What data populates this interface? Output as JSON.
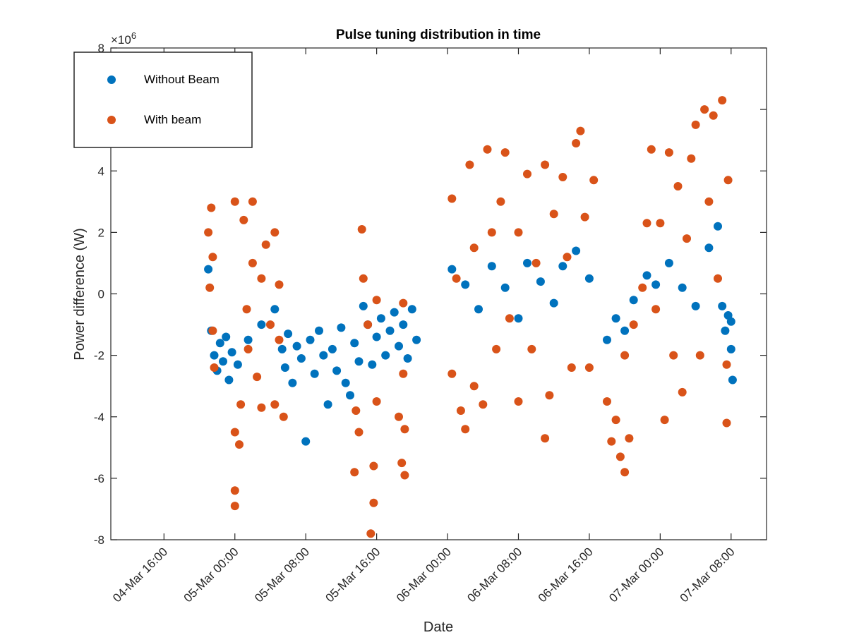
{
  "chart_data": {
    "type": "scatter",
    "title": "Pulse tuning distribution in time",
    "xlabel": "Date",
    "ylabel": "Power difference (W)",
    "y_exponent_label": "×10",
    "y_exponent_power": "6",
    "x_axis": "time",
    "xlim": [
      "2015-03-04 10:00",
      "2015-03-07 12:00"
    ],
    "ylim": [
      -8,
      8
    ],
    "y_scale": 1000000,
    "x_ticks": [
      {
        "value": "2015-03-04 16:00",
        "label": "04-Mar 16:00"
      },
      {
        "value": "2015-03-05 00:00",
        "label": "05-Mar 00:00"
      },
      {
        "value": "2015-03-05 08:00",
        "label": "05-Mar 08:00"
      },
      {
        "value": "2015-03-05 16:00",
        "label": "05-Mar 16:00"
      },
      {
        "value": "2015-03-06 00:00",
        "label": "06-Mar 00:00"
      },
      {
        "value": "2015-03-06 08:00",
        "label": "06-Mar 08:00"
      },
      {
        "value": "2015-03-06 16:00",
        "label": "06-Mar 16:00"
      },
      {
        "value": "2015-03-07 00:00",
        "label": "07-Mar 00:00"
      },
      {
        "value": "2015-03-07 08:00",
        "label": "07-Mar 08:00"
      }
    ],
    "y_ticks": [
      {
        "value": -8,
        "label": "-8"
      },
      {
        "value": -6,
        "label": "-6"
      },
      {
        "value": -4,
        "label": "-4"
      },
      {
        "value": -2,
        "label": "-2"
      },
      {
        "value": 0,
        "label": "0"
      },
      {
        "value": 2,
        "label": "2"
      },
      {
        "value": 4,
        "label": "4"
      },
      {
        "value": 6,
        "label": ""
      },
      {
        "value": 8,
        "label": "8"
      }
    ],
    "grid": false,
    "legend_position": "top-left",
    "series": [
      {
        "name": "Without Beam",
        "color": "#0072BD",
        "points": [
          {
            "x": "2015-03-04 21:00",
            "y": 0.8
          },
          {
            "x": "2015-03-04 21:20",
            "y": -1.2
          },
          {
            "x": "2015-03-04 21:40",
            "y": -2.0
          },
          {
            "x": "2015-03-04 22:00",
            "y": -2.5
          },
          {
            "x": "2015-03-04 22:20",
            "y": -1.6
          },
          {
            "x": "2015-03-04 22:40",
            "y": -2.2
          },
          {
            "x": "2015-03-04 23:00",
            "y": -1.4
          },
          {
            "x": "2015-03-04 23:20",
            "y": -2.8
          },
          {
            "x": "2015-03-04 23:40",
            "y": -1.9
          },
          {
            "x": "2015-03-05 00:20",
            "y": -2.3
          },
          {
            "x": "2015-03-05 01:30",
            "y": -1.5
          },
          {
            "x": "2015-03-05 03:00",
            "y": -1.0
          },
          {
            "x": "2015-03-05 04:30",
            "y": -0.5
          },
          {
            "x": "2015-03-05 05:20",
            "y": -1.8
          },
          {
            "x": "2015-03-05 05:40",
            "y": -2.4
          },
          {
            "x": "2015-03-05 06:00",
            "y": -1.3
          },
          {
            "x": "2015-03-05 06:30",
            "y": -2.9
          },
          {
            "x": "2015-03-05 07:00",
            "y": -1.7
          },
          {
            "x": "2015-03-05 07:30",
            "y": -2.1
          },
          {
            "x": "2015-03-05 08:00",
            "y": -4.8
          },
          {
            "x": "2015-03-05 08:30",
            "y": -1.5
          },
          {
            "x": "2015-03-05 09:00",
            "y": -2.6
          },
          {
            "x": "2015-03-05 09:30",
            "y": -1.2
          },
          {
            "x": "2015-03-05 10:00",
            "y": -2.0
          },
          {
            "x": "2015-03-05 10:30",
            "y": -3.6
          },
          {
            "x": "2015-03-05 11:00",
            "y": -1.8
          },
          {
            "x": "2015-03-05 11:30",
            "y": -2.5
          },
          {
            "x": "2015-03-05 12:00",
            "y": -1.1
          },
          {
            "x": "2015-03-05 12:30",
            "y": -2.9
          },
          {
            "x": "2015-03-05 13:00",
            "y": -3.3
          },
          {
            "x": "2015-03-05 13:30",
            "y": -1.6
          },
          {
            "x": "2015-03-05 14:00",
            "y": -2.2
          },
          {
            "x": "2015-03-05 14:30",
            "y": -0.4
          },
          {
            "x": "2015-03-05 15:00",
            "y": -1.0
          },
          {
            "x": "2015-03-05 15:30",
            "y": -2.3
          },
          {
            "x": "2015-03-05 16:00",
            "y": -1.4
          },
          {
            "x": "2015-03-05 16:30",
            "y": -0.8
          },
          {
            "x": "2015-03-05 17:00",
            "y": -2.0
          },
          {
            "x": "2015-03-05 17:30",
            "y": -1.2
          },
          {
            "x": "2015-03-05 18:00",
            "y": -0.6
          },
          {
            "x": "2015-03-05 18:30",
            "y": -1.7
          },
          {
            "x": "2015-03-05 19:00",
            "y": -1.0
          },
          {
            "x": "2015-03-05 19:30",
            "y": -2.1
          },
          {
            "x": "2015-03-05 20:00",
            "y": -0.5
          },
          {
            "x": "2015-03-05 20:30",
            "y": -1.5
          },
          {
            "x": "2015-03-06 00:30",
            "y": 0.8
          },
          {
            "x": "2015-03-06 02:00",
            "y": 0.3
          },
          {
            "x": "2015-03-06 03:30",
            "y": -0.5
          },
          {
            "x": "2015-03-06 05:00",
            "y": 0.9
          },
          {
            "x": "2015-03-06 06:30",
            "y": 0.2
          },
          {
            "x": "2015-03-06 08:00",
            "y": -0.8
          },
          {
            "x": "2015-03-06 09:00",
            "y": 1.0
          },
          {
            "x": "2015-03-06 10:30",
            "y": 0.4
          },
          {
            "x": "2015-03-06 12:00",
            "y": -0.3
          },
          {
            "x": "2015-03-06 13:00",
            "y": 0.9
          },
          {
            "x": "2015-03-06 14:30",
            "y": 1.4
          },
          {
            "x": "2015-03-06 16:00",
            "y": 0.5
          },
          {
            "x": "2015-03-06 18:00",
            "y": -1.5
          },
          {
            "x": "2015-03-06 19:00",
            "y": -0.8
          },
          {
            "x": "2015-03-06 20:00",
            "y": -1.2
          },
          {
            "x": "2015-03-06 21:00",
            "y": -0.2
          },
          {
            "x": "2015-03-06 22:30",
            "y": 0.6
          },
          {
            "x": "2015-03-06 23:30",
            "y": 0.3
          },
          {
            "x": "2015-03-07 01:00",
            "y": 1.0
          },
          {
            "x": "2015-03-07 02:30",
            "y": 0.2
          },
          {
            "x": "2015-03-07 04:00",
            "y": -0.4
          },
          {
            "x": "2015-03-07 05:30",
            "y": 1.5
          },
          {
            "x": "2015-03-07 06:30",
            "y": 2.2
          },
          {
            "x": "2015-03-07 07:00",
            "y": -0.4
          },
          {
            "x": "2015-03-07 07:20",
            "y": -1.2
          },
          {
            "x": "2015-03-07 07:40",
            "y": -0.7
          },
          {
            "x": "2015-03-07 08:00",
            "y": -1.8
          },
          {
            "x": "2015-03-07 08:10",
            "y": -2.8
          },
          {
            "x": "2015-03-07 08:00",
            "y": -0.9
          }
        ]
      },
      {
        "name": "With beam",
        "color": "#D95319",
        "points": [
          {
            "x": "2015-03-04 21:00",
            "y": 2.0
          },
          {
            "x": "2015-03-04 21:10",
            "y": 0.2
          },
          {
            "x": "2015-03-04 21:20",
            "y": 2.8
          },
          {
            "x": "2015-03-04 21:30",
            "y": -1.2
          },
          {
            "x": "2015-03-04 21:40",
            "y": -2.4
          },
          {
            "x": "2015-03-04 21:30",
            "y": 1.2
          },
          {
            "x": "2015-03-05 00:00",
            "y": -6.9
          },
          {
            "x": "2015-03-05 00:00",
            "y": -6.4
          },
          {
            "x": "2015-03-05 00:00",
            "y": -4.5
          },
          {
            "x": "2015-03-05 00:00",
            "y": 3.0
          },
          {
            "x": "2015-03-05 00:30",
            "y": -4.9
          },
          {
            "x": "2015-03-05 00:40",
            "y": -3.6
          },
          {
            "x": "2015-03-05 01:00",
            "y": 2.4
          },
          {
            "x": "2015-03-05 01:20",
            "y": -0.5
          },
          {
            "x": "2015-03-05 01:30",
            "y": -1.8
          },
          {
            "x": "2015-03-05 02:00",
            "y": 1.0
          },
          {
            "x": "2015-03-05 02:00",
            "y": 3.0
          },
          {
            "x": "2015-03-05 02:30",
            "y": -2.7
          },
          {
            "x": "2015-03-05 03:00",
            "y": -3.7
          },
          {
            "x": "2015-03-05 03:00",
            "y": 0.5
          },
          {
            "x": "2015-03-05 03:30",
            "y": 1.6
          },
          {
            "x": "2015-03-05 04:00",
            "y": -1.0
          },
          {
            "x": "2015-03-05 04:30",
            "y": 2.0
          },
          {
            "x": "2015-03-05 04:30",
            "y": -3.6
          },
          {
            "x": "2015-03-05 05:00",
            "y": 0.3
          },
          {
            "x": "2015-03-05 05:30",
            "y": -4.0
          },
          {
            "x": "2015-03-05 05:00",
            "y": -1.5
          },
          {
            "x": "2015-03-05 13:30",
            "y": -5.8
          },
          {
            "x": "2015-03-05 13:40",
            "y": -3.8
          },
          {
            "x": "2015-03-05 14:00",
            "y": -4.5
          },
          {
            "x": "2015-03-05 14:20",
            "y": 2.1
          },
          {
            "x": "2015-03-05 14:30",
            "y": 0.5
          },
          {
            "x": "2015-03-05 15:00",
            "y": -1.0
          },
          {
            "x": "2015-03-05 15:20",
            "y": -7.8
          },
          {
            "x": "2015-03-05 15:40",
            "y": -6.8
          },
          {
            "x": "2015-03-05 15:40",
            "y": -5.6
          },
          {
            "x": "2015-03-05 16:00",
            "y": -3.5
          },
          {
            "x": "2015-03-05 16:00",
            "y": -0.2
          },
          {
            "x": "2015-03-05 18:30",
            "y": -4.0
          },
          {
            "x": "2015-03-05 18:50",
            "y": -5.5
          },
          {
            "x": "2015-03-05 19:00",
            "y": -2.6
          },
          {
            "x": "2015-03-05 19:10",
            "y": -5.9
          },
          {
            "x": "2015-03-05 19:00",
            "y": -0.3
          },
          {
            "x": "2015-03-05 19:10",
            "y": -4.4
          },
          {
            "x": "2015-03-06 00:30",
            "y": 3.1
          },
          {
            "x": "2015-03-06 00:30",
            "y": -2.6
          },
          {
            "x": "2015-03-06 01:00",
            "y": 0.5
          },
          {
            "x": "2015-03-06 01:30",
            "y": -3.8
          },
          {
            "x": "2015-03-06 02:00",
            "y": -4.4
          },
          {
            "x": "2015-03-06 02:30",
            "y": 4.2
          },
          {
            "x": "2015-03-06 03:00",
            "y": -3.0
          },
          {
            "x": "2015-03-06 03:00",
            "y": 1.5
          },
          {
            "x": "2015-03-06 04:00",
            "y": -3.6
          },
          {
            "x": "2015-03-06 04:30",
            "y": 4.7
          },
          {
            "x": "2015-03-06 05:00",
            "y": 2.0
          },
          {
            "x": "2015-03-06 05:30",
            "y": -1.8
          },
          {
            "x": "2015-03-06 06:00",
            "y": 3.0
          },
          {
            "x": "2015-03-06 06:30",
            "y": 4.6
          },
          {
            "x": "2015-03-06 07:00",
            "y": -0.8
          },
          {
            "x": "2015-03-06 08:00",
            "y": -3.5
          },
          {
            "x": "2015-03-06 08:00",
            "y": 2.0
          },
          {
            "x": "2015-03-06 09:00",
            "y": 3.9
          },
          {
            "x": "2015-03-06 09:30",
            "y": -1.8
          },
          {
            "x": "2015-03-06 10:00",
            "y": 1.0
          },
          {
            "x": "2015-03-06 11:00",
            "y": -4.7
          },
          {
            "x": "2015-03-06 11:00",
            "y": 4.2
          },
          {
            "x": "2015-03-06 11:30",
            "y": -3.3
          },
          {
            "x": "2015-03-06 12:00",
            "y": 2.6
          },
          {
            "x": "2015-03-06 13:00",
            "y": 3.8
          },
          {
            "x": "2015-03-06 13:30",
            "y": 1.2
          },
          {
            "x": "2015-03-06 14:00",
            "y": -2.4
          },
          {
            "x": "2015-03-06 14:30",
            "y": 4.9
          },
          {
            "x": "2015-03-06 15:00",
            "y": 5.3
          },
          {
            "x": "2015-03-06 15:30",
            "y": 2.5
          },
          {
            "x": "2015-03-06 16:00",
            "y": -2.4
          },
          {
            "x": "2015-03-06 16:30",
            "y": 3.7
          },
          {
            "x": "2015-03-06 18:00",
            "y": -3.5
          },
          {
            "x": "2015-03-06 18:30",
            "y": -4.8
          },
          {
            "x": "2015-03-06 19:00",
            "y": -4.1
          },
          {
            "x": "2015-03-06 19:30",
            "y": -5.3
          },
          {
            "x": "2015-03-06 20:00",
            "y": -5.8
          },
          {
            "x": "2015-03-06 20:30",
            "y": -4.7
          },
          {
            "x": "2015-03-06 20:00",
            "y": -2.0
          },
          {
            "x": "2015-03-06 21:00",
            "y": -1.0
          },
          {
            "x": "2015-03-06 22:00",
            "y": 0.2
          },
          {
            "x": "2015-03-06 22:30",
            "y": 2.3
          },
          {
            "x": "2015-03-06 23:00",
            "y": 4.7
          },
          {
            "x": "2015-03-06 23:30",
            "y": -0.5
          },
          {
            "x": "2015-03-07 00:00",
            "y": 2.3
          },
          {
            "x": "2015-03-07 00:30",
            "y": -4.1
          },
          {
            "x": "2015-03-07 01:00",
            "y": 4.6
          },
          {
            "x": "2015-03-07 01:30",
            "y": -2.0
          },
          {
            "x": "2015-03-07 02:00",
            "y": 3.5
          },
          {
            "x": "2015-03-07 02:30",
            "y": -3.2
          },
          {
            "x": "2015-03-07 03:00",
            "y": 1.8
          },
          {
            "x": "2015-03-07 03:30",
            "y": 4.4
          },
          {
            "x": "2015-03-07 04:00",
            "y": 5.5
          },
          {
            "x": "2015-03-07 04:30",
            "y": -2.0
          },
          {
            "x": "2015-03-07 05:00",
            "y": 6.0
          },
          {
            "x": "2015-03-07 05:30",
            "y": 3.0
          },
          {
            "x": "2015-03-07 06:00",
            "y": 5.8
          },
          {
            "x": "2015-03-07 06:30",
            "y": 0.5
          },
          {
            "x": "2015-03-07 07:00",
            "y": 6.3
          },
          {
            "x": "2015-03-07 07:30",
            "y": -2.3
          },
          {
            "x": "2015-03-07 07:30",
            "y": -4.2
          },
          {
            "x": "2015-03-07 07:40",
            "y": 3.7
          }
        ]
      }
    ]
  }
}
